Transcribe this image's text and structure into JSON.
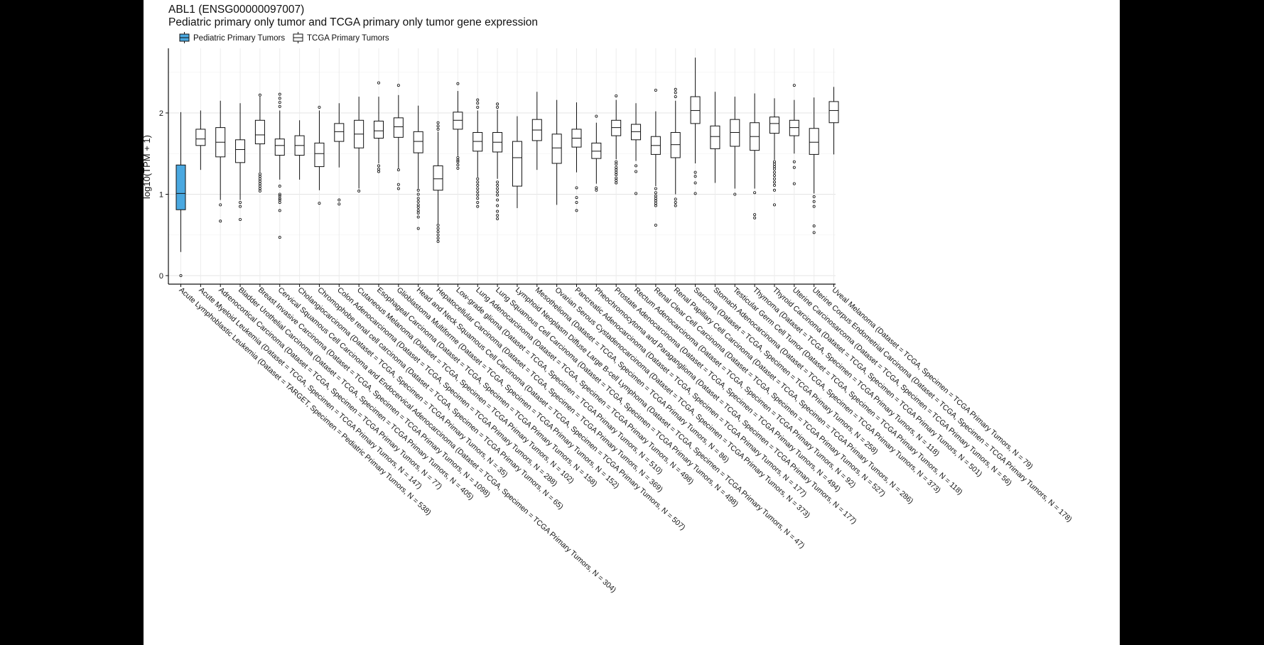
{
  "chart_data": {
    "type": "boxplot",
    "title": "ABL1 (ENSG00000097007)",
    "subtitle": "Pediatric primary only tumor and TCGA primary only tumor gene expression",
    "ylabel": "log10(TPM + 1)",
    "xlabel": "",
    "ylim": [
      -0.05,
      2.85
    ],
    "yticks": [
      0,
      1,
      2
    ],
    "grid": true,
    "legend_position": "top-left",
    "legend": [
      {
        "name": "Pediatric Primary Tumors",
        "color": "#4aa8e0"
      },
      {
        "name": "TCGA Primary Tumors",
        "color": "#ffffff"
      }
    ],
    "categories": [
      {
        "label": "Acute Lymphoblastic Leukemia  (Dataset = TARGET, Specimen = Pediatric Primary Tumors, N = 538)",
        "group": "Pediatric Primary Tumors",
        "q1": 0.81,
        "median": 1.01,
        "q3": 1.36,
        "whisker_low": 0.29,
        "whisker_high": 2.01,
        "outliers": [
          0.0
        ]
      },
      {
        "label": "Acute Myeloid Leukemia  (Dataset = TCGA, Specimen = TCGA Primary Tumors, N = 147)",
        "group": "TCGA Primary Tumors",
        "q1": 1.6,
        "median": 1.68,
        "q3": 1.8,
        "whisker_low": 1.3,
        "whisker_high": 2.03,
        "outliers": []
      },
      {
        "label": "Adrenocortical Carcinoma  (Dataset = TCGA, Specimen = TCGA Primary Tumors, N = 77)",
        "group": "TCGA Primary Tumors",
        "q1": 1.46,
        "median": 1.64,
        "q3": 1.82,
        "whisker_low": 0.93,
        "whisker_high": 2.15,
        "outliers": [
          0.87,
          0.67
        ]
      },
      {
        "label": "Bladder Urothelial Carcinoma  (Dataset = TCGA, Specimen = TCGA Primary Tumors, N = 405)",
        "group": "TCGA Primary Tumors",
        "q1": 1.39,
        "median": 1.55,
        "q3": 1.67,
        "whisker_low": 0.93,
        "whisker_high": 2.12,
        "outliers": [
          0.9,
          0.85,
          0.69
        ]
      },
      {
        "label": "Breast Invasive Carcinoma  (Dataset = TCGA, Specimen = TCGA Primary Tumors, N = 1098)",
        "group": "TCGA Primary Tumors",
        "q1": 1.62,
        "median": 1.73,
        "q3": 1.91,
        "whisker_low": 1.27,
        "whisker_high": 2.2,
        "outliers": [
          1.25,
          1.22,
          1.19,
          1.16,
          1.13,
          1.1,
          1.07,
          1.04,
          2.22
        ]
      },
      {
        "label": "Cervical Squamous Cell Carcinoma and Endocervical Adenocarcinoma  (Dataset = TCGA, Specimen = TCGA Primary Tumors, N = 304)",
        "group": "TCGA Primary Tumors",
        "q1": 1.48,
        "median": 1.6,
        "q3": 1.68,
        "whisker_low": 1.18,
        "whisker_high": 2.03,
        "outliers": [
          1.1,
          1.0,
          0.98,
          0.95,
          0.93,
          0.9,
          0.8,
          0.47,
          2.08,
          2.13,
          2.18,
          2.23
        ]
      },
      {
        "label": "Cholangiocarcinoma  (Dataset = TCGA, Specimen = TCGA Primary Tumors, N = 35)",
        "group": "TCGA Primary Tumors",
        "q1": 1.48,
        "median": 1.6,
        "q3": 1.72,
        "whisker_low": 1.18,
        "whisker_high": 1.91,
        "outliers": []
      },
      {
        "label": "Chromophobe renal cell carcinoma  (Dataset = TCGA, Specimen = TCGA Primary Tumors, N = 65)",
        "group": "TCGA Primary Tumors",
        "q1": 1.34,
        "median": 1.5,
        "q3": 1.63,
        "whisker_low": 1.05,
        "whisker_high": 2.03,
        "outliers": [
          0.89,
          2.07
        ]
      },
      {
        "label": "Colon Adenocarcinoma  (Dataset = TCGA, Specimen = TCGA Primary Tumors, N = 288)",
        "group": "TCGA Primary Tumors",
        "q1": 1.65,
        "median": 1.77,
        "q3": 1.87,
        "whisker_low": 1.33,
        "whisker_high": 2.12,
        "outliers": [
          0.93,
          0.88
        ]
      },
      {
        "label": "Cutaneous Melanoma  (Dataset = TCGA, Specimen = TCGA Primary Tumors, N = 102)",
        "group": "TCGA Primary Tumors",
        "q1": 1.57,
        "median": 1.74,
        "q3": 1.91,
        "whisker_low": 1.07,
        "whisker_high": 2.2,
        "outliers": [
          1.04
        ]
      },
      {
        "label": "Esophageal Carcinoma  (Dataset = TCGA, Specimen = TCGA Primary Tumors, N = 158)",
        "group": "TCGA Primary Tumors",
        "q1": 1.69,
        "median": 1.78,
        "q3": 1.9,
        "whisker_low": 1.38,
        "whisker_high": 2.2,
        "outliers": [
          1.35,
          1.31,
          1.28,
          2.37
        ]
      },
      {
        "label": "Glioblastoma Multiforme  (Dataset = TCGA, Specimen = TCGA Primary Tumors, N = 152)",
        "group": "TCGA Primary Tumors",
        "q1": 1.7,
        "median": 1.83,
        "q3": 1.94,
        "whisker_low": 1.32,
        "whisker_high": 2.22,
        "outliers": [
          1.3,
          1.12,
          1.07,
          2.34
        ]
      },
      {
        "label": "Head and Neck Squamous Cell Carcinoma  (Dataset = TCGA, Specimen = TCGA Primary Tumors, N = 507)",
        "group": "TCGA Primary Tumors",
        "q1": 1.51,
        "median": 1.65,
        "q3": 1.77,
        "whisker_low": 1.07,
        "whisker_high": 2.09,
        "outliers": [
          1.05,
          1.0,
          0.95,
          0.91,
          0.87,
          0.84,
          0.8,
          0.77,
          0.72,
          0.58
        ]
      },
      {
        "label": "Hepatocellular Carcinoma  (Dataset = TCGA, Specimen = TCGA Primary Tumors, N = 369)",
        "group": "TCGA Primary Tumors",
        "q1": 1.05,
        "median": 1.19,
        "q3": 1.35,
        "whisker_low": 0.64,
        "whisker_high": 1.77,
        "outliers": [
          0.62,
          0.58,
          0.54,
          0.5,
          0.46,
          0.42,
          1.8,
          1.84,
          1.88
        ]
      },
      {
        "label": "Low-grade glioma  (Dataset = TCGA, Specimen = TCGA Primary Tumors, N = 510)",
        "group": "TCGA Primary Tumors",
        "q1": 1.8,
        "median": 1.91,
        "q3": 2.01,
        "whisker_low": 1.47,
        "whisker_high": 2.27,
        "outliers": [
          1.45,
          1.42,
          1.4,
          1.36,
          1.32,
          2.36
        ]
      },
      {
        "label": "Lung Adenocarcinoma  (Dataset = TCGA, Specimen = TCGA Primary Tumors, N = 498)",
        "group": "TCGA Primary Tumors",
        "q1": 1.53,
        "median": 1.65,
        "q3": 1.76,
        "whisker_low": 1.21,
        "whisker_high": 2.03,
        "outliers": [
          1.19,
          1.15,
          1.11,
          1.07,
          1.03,
          0.99,
          0.95,
          0.9,
          0.85,
          2.07,
          2.12,
          2.16
        ]
      },
      {
        "label": "Lung Squamous Cell Carcinoma  (Dataset = TCGA, Specimen = TCGA Primary Tumors, N = 498)",
        "group": "TCGA Primary Tumors",
        "q1": 1.52,
        "median": 1.64,
        "q3": 1.76,
        "whisker_low": 1.19,
        "whisker_high": 2.04,
        "outliers": [
          1.15,
          1.11,
          1.07,
          1.03,
          0.99,
          0.93,
          0.86,
          0.79,
          0.74,
          0.7,
          2.07,
          2.11
        ]
      },
      {
        "label": "Lymphoid Neoplasm Diffuse Large B-cell Lymphoma  (Dataset = TCGA, Specimen = TCGA Primary Tumors, N = 47)",
        "group": "TCGA Primary Tumors",
        "q1": 1.1,
        "median": 1.45,
        "q3": 1.65,
        "whisker_low": 0.83,
        "whisker_high": 1.96,
        "outliers": []
      },
      {
        "label": "Mesothelioma  (Dataset = TCGA, Specimen = TCGA Primary Tumors, N = 86)",
        "group": "TCGA Primary Tumors",
        "q1": 1.66,
        "median": 1.79,
        "q3": 1.92,
        "whisker_low": 1.3,
        "whisker_high": 2.26,
        "outliers": []
      },
      {
        "label": "Ovarian Serous Cystadenocarcinoma  (Dataset = TCGA, Specimen = TCGA Primary Tumors, N = 373)",
        "group": "TCGA Primary Tumors",
        "q1": 1.38,
        "median": 1.57,
        "q3": 1.74,
        "whisker_low": 0.87,
        "whisker_high": 2.16,
        "outliers": []
      },
      {
        "label": "Pancreatic Adenocarcinoma  (Dataset = TCGA, Specimen = TCGA Primary Tumors, N = 177)",
        "group": "TCGA Primary Tumors",
        "q1": 1.58,
        "median": 1.69,
        "q3": 1.8,
        "whisker_low": 1.27,
        "whisker_high": 2.13,
        "outliers": [
          1.08,
          0.96,
          0.9,
          0.8
        ]
      },
      {
        "label": "Pheochromocytoma and Paraganglioma  (Dataset = TCGA, Specimen = TCGA Primary Tumors, N = 177)",
        "group": "TCGA Primary Tumors",
        "q1": 1.44,
        "median": 1.53,
        "q3": 1.63,
        "whisker_low": 1.13,
        "whisker_high": 1.88,
        "outliers": [
          1.08,
          1.05,
          1.96
        ]
      },
      {
        "label": "Prostate Adenocarcinoma  (Dataset = TCGA, Specimen = TCGA Primary Tumors, N = 494)",
        "group": "TCGA Primary Tumors",
        "q1": 1.72,
        "median": 1.82,
        "q3": 1.91,
        "whisker_low": 1.43,
        "whisker_high": 2.16,
        "outliers": [
          1.4,
          1.37,
          1.33,
          1.3,
          1.27,
          1.24,
          1.2,
          1.17,
          1.14,
          2.21
        ]
      },
      {
        "label": "Rectum Adenocarcinoma  (Dataset = TCGA, Specimen = TCGA Primary Tumors, N = 92)",
        "group": "TCGA Primary Tumors",
        "q1": 1.67,
        "median": 1.77,
        "q3": 1.86,
        "whisker_low": 1.41,
        "whisker_high": 2.12,
        "outliers": [
          1.35,
          1.28,
          1.01
        ]
      },
      {
        "label": "Renal Clear Cell Carcinoma  (Dataset = TCGA, Specimen = TCGA Primary Tumors, N = 527)",
        "group": "TCGA Primary Tumors",
        "q1": 1.49,
        "median": 1.6,
        "q3": 1.71,
        "whisker_low": 1.1,
        "whisker_high": 2.02,
        "outliers": [
          1.07,
          1.02,
          0.98,
          0.95,
          0.92,
          0.89,
          0.86,
          0.62,
          2.28
        ]
      },
      {
        "label": "Renal Papillary Cell Carcinoma  (Dataset = TCGA, Specimen = TCGA Primary Tumors, N = 286)",
        "group": "TCGA Primary Tumors",
        "q1": 1.45,
        "median": 1.61,
        "q3": 1.76,
        "whisker_low": 1.0,
        "whisker_high": 2.15,
        "outliers": [
          0.94,
          0.9,
          0.86,
          2.2,
          2.25,
          2.29
        ]
      },
      {
        "label": "Sarcoma  (Dataset = TCGA, Specimen = TCGA Primary Tumors, N = 258)",
        "group": "TCGA Primary Tumors",
        "q1": 1.87,
        "median": 2.03,
        "q3": 2.2,
        "whisker_low": 1.38,
        "whisker_high": 2.68,
        "outliers": [
          1.27,
          1.22,
          1.14,
          1.01
        ]
      },
      {
        "label": "Stomach Adenocarcinoma  (Dataset = TCGA, Specimen = TCGA Primary Tumors, N = 373)",
        "group": "TCGA Primary Tumors",
        "q1": 1.56,
        "median": 1.71,
        "q3": 1.84,
        "whisker_low": 1.14,
        "whisker_high": 2.26,
        "outliers": []
      },
      {
        "label": "Testicular Germ Cell Tumor  (Dataset = TCGA, Specimen = TCGA Primary Tumors, N = 118)",
        "group": "TCGA Primary Tumors",
        "q1": 1.59,
        "median": 1.76,
        "q3": 1.92,
        "whisker_low": 1.07,
        "whisker_high": 2.2,
        "outliers": [
          1.0
        ]
      },
      {
        "label": "Thymoma  (Dataset = TCGA, Specimen = TCGA Primary Tumors, N = 118)",
        "group": "TCGA Primary Tumors",
        "q1": 1.54,
        "median": 1.71,
        "q3": 1.88,
        "whisker_low": 1.07,
        "whisker_high": 2.24,
        "outliers": [
          1.02,
          0.75,
          0.71
        ]
      },
      {
        "label": "Thyroid Carcinoma  (Dataset = TCGA, Specimen = TCGA Primary Tumors, N = 501)",
        "group": "TCGA Primary Tumors",
        "q1": 1.75,
        "median": 1.87,
        "q3": 1.95,
        "whisker_low": 1.42,
        "whisker_high": 2.18,
        "outliers": [
          1.4,
          1.37,
          1.34,
          1.31,
          1.27,
          1.23,
          1.19,
          1.15,
          1.11,
          1.05,
          0.87
        ]
      },
      {
        "label": "Uterine Carcinosarcoma  (Dataset = TCGA, Specimen = TCGA Primary Tumors, N = 56)",
        "group": "TCGA Primary Tumors",
        "q1": 1.72,
        "median": 1.82,
        "q3": 1.91,
        "whisker_low": 1.5,
        "whisker_high": 2.16,
        "outliers": [
          1.4,
          1.33,
          1.13,
          2.34
        ]
      },
      {
        "label": "Uterine Corpus Endometrial Carcinoma  (Dataset = TCGA, Specimen = TCGA Primary Tumors, N = 178)",
        "group": "TCGA Primary Tumors",
        "q1": 1.49,
        "median": 1.64,
        "q3": 1.81,
        "whisker_low": 1.01,
        "whisker_high": 2.19,
        "outliers": [
          0.97,
          0.91,
          0.85,
          0.61,
          0.53
        ]
      },
      {
        "label": "Uveal Melanoma  (Dataset = TCGA, Specimen = TCGA Primary Tumors, N = 79)",
        "group": "TCGA Primary Tumors",
        "q1": 1.88,
        "median": 2.03,
        "q3": 2.14,
        "whisker_low": 1.49,
        "whisker_high": 2.32,
        "outliers": []
      }
    ]
  }
}
